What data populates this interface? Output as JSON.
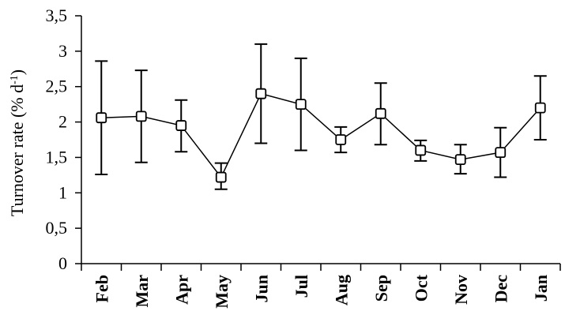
{
  "chart_data": {
    "type": "line",
    "title": "",
    "ylabel": {
      "main": "Turnover rate (% d",
      "superscript": "-1",
      "tail": ")"
    },
    "xlabel": "",
    "categories": [
      "Feb",
      "Mar",
      "Apr",
      "May",
      "Jun",
      "Jul",
      "Aug",
      "Sep",
      "Oct",
      "Nov",
      "Dec",
      "Jan"
    ],
    "series": [
      {
        "values": [
          2.06,
          2.08,
          1.95,
          1.22,
          2.4,
          2.25,
          1.75,
          2.12,
          1.6,
          1.47,
          1.57,
          2.2
        ],
        "lower": [
          1.26,
          1.43,
          1.58,
          1.05,
          1.7,
          1.6,
          1.57,
          1.68,
          1.45,
          1.27,
          1.22,
          1.75
        ],
        "upper": [
          2.86,
          2.73,
          2.31,
          1.42,
          3.1,
          2.9,
          1.93,
          2.55,
          1.74,
          1.68,
          1.92,
          2.65
        ]
      }
    ],
    "ylim": [
      0,
      3.5
    ],
    "yticks": [
      0,
      0.5,
      1,
      1.5,
      2,
      2.5,
      3,
      3.5
    ],
    "ytick_labels": [
      "0",
      "0,5",
      "1",
      "1,5",
      "2",
      "2,5",
      "3",
      "3,5"
    ],
    "grid": false,
    "legend": "none",
    "marker": "open square",
    "colors": {
      "line": "#000000",
      "marker_fill": "#ffffff",
      "background": "#ffffff"
    }
  }
}
